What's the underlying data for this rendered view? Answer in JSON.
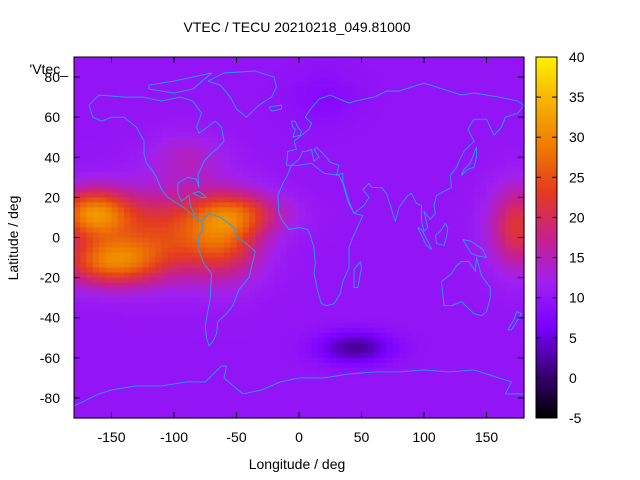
{
  "chart_data": {
    "type": "heatmap",
    "title": "VTEC / TECU 20210218_049.81000",
    "xlabel": "Longitude / deg",
    "ylabel": "Latitude / deg",
    "legend_label": "'Vtec_",
    "xlim": [
      -180,
      180
    ],
    "ylim": [
      -90,
      90
    ],
    "x_ticks": [
      -150,
      -100,
      -50,
      0,
      50,
      100,
      150
    ],
    "y_ticks": [
      -80,
      -60,
      -40,
      -20,
      0,
      20,
      40,
      60,
      80
    ],
    "colorbar": {
      "range": [
        -5,
        40
      ],
      "ticks": [
        -5,
        0,
        5,
        10,
        15,
        20,
        25,
        30,
        35,
        40
      ],
      "colors": [
        "#000000",
        "#3a0078",
        "#7a00ff",
        "#a020f0",
        "#c8208a",
        "#e43a20",
        "#ee7a00",
        "#f6b200",
        "#fff000"
      ]
    },
    "grid": false,
    "grid_resolution_deg": [
      5,
      2.5
    ],
    "background_level": 10,
    "field_features": [
      {
        "lon": -165,
        "lat": 12,
        "dlon": 30,
        "dlat": 12,
        "amp": 19
      },
      {
        "lon": -150,
        "lat": -12,
        "dlon": 40,
        "dlat": 12,
        "amp": 17
      },
      {
        "lon": -105,
        "lat": 3,
        "dlon": 50,
        "dlat": 20,
        "amp": 12
      },
      {
        "lon": -60,
        "lat": 0,
        "dlon": 30,
        "dlat": 20,
        "amp": 12
      },
      {
        "lon": -45,
        "lat": 12,
        "dlon": 35,
        "dlat": 10,
        "amp": 9
      },
      {
        "lon": 175,
        "lat": 5,
        "dlon": 22,
        "dlat": 20,
        "amp": 12
      },
      {
        "lon": -90,
        "lat": 40,
        "dlon": 30,
        "dlat": 12,
        "amp": 4
      },
      {
        "lon": 45,
        "lat": -55,
        "dlon": 30,
        "dlat": 8,
        "amp": -8
      },
      {
        "lon": 20,
        "lat": 70,
        "dlon": 30,
        "dlat": 15,
        "amp": -2
      }
    ],
    "overlay": "world-coastlines",
    "coastline_color": "#1ea0ff"
  }
}
